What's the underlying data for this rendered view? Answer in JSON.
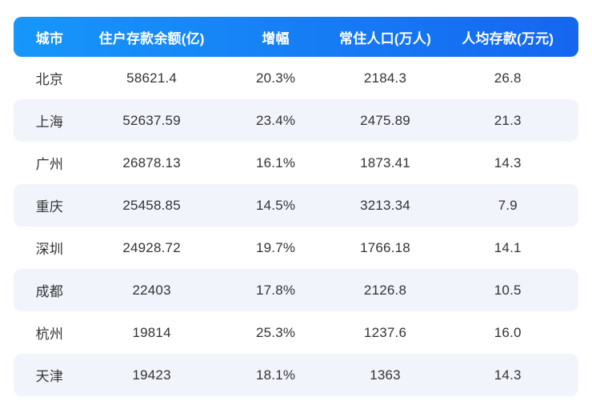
{
  "colors": {
    "header_gradient_start": "#1697FA",
    "header_gradient_end": "#1566F0",
    "header_text": "#FFFFFF",
    "stripe_row_background": "#F2F4FC",
    "body_text": "#333333",
    "page_background": "#FFFFFF"
  },
  "table": {
    "headers": {
      "city": "城市",
      "balance": "住户存款余额(亿)",
      "growth": "增幅",
      "population": "常住人口(万人)",
      "per_capita": "人均存款(万元)"
    },
    "rows": [
      {
        "city": "北京",
        "balance": "58621.4",
        "growth": "20.3%",
        "population": "2184.3",
        "per_capita": "26.8"
      },
      {
        "city": "上海",
        "balance": "52637.59",
        "growth": "23.4%",
        "population": "2475.89",
        "per_capita": "21.3"
      },
      {
        "city": "广州",
        "balance": "26878.13",
        "growth": "16.1%",
        "population": "1873.41",
        "per_capita": "14.3"
      },
      {
        "city": "重庆",
        "balance": "25458.85",
        "growth": "14.5%",
        "population": "3213.34",
        "per_capita": "7.9"
      },
      {
        "city": "深圳",
        "balance": "24928.72",
        "growth": "19.7%",
        "population": "1766.18",
        "per_capita": "14.1"
      },
      {
        "city": "成都",
        "balance": "22403",
        "growth": "17.8%",
        "population": "2126.8",
        "per_capita": "10.5"
      },
      {
        "city": "杭州",
        "balance": "19814",
        "growth": "25.3%",
        "population": "1237.6",
        "per_capita": "16.0"
      },
      {
        "city": "天津",
        "balance": "19423",
        "growth": "18.1%",
        "population": "1363",
        "per_capita": "14.3"
      }
    ]
  },
  "chart_data": {
    "type": "table",
    "columns": [
      "城市",
      "住户存款余额(亿)",
      "增幅",
      "常住人口(万人)",
      "人均存款(万元)"
    ],
    "rows": [
      [
        "北京",
        58621.4,
        "20.3%",
        2184.3,
        26.8
      ],
      [
        "上海",
        52637.59,
        "23.4%",
        2475.89,
        21.3
      ],
      [
        "广州",
        26878.13,
        "16.1%",
        1873.41,
        14.3
      ],
      [
        "重庆",
        25458.85,
        "14.5%",
        3213.34,
        7.9
      ],
      [
        "深圳",
        24928.72,
        "19.7%",
        1766.18,
        14.1
      ],
      [
        "成都",
        22403,
        "17.8%",
        2126.8,
        10.5
      ],
      [
        "杭州",
        19814,
        "25.3%",
        1237.6,
        16.0
      ],
      [
        "天津",
        19423,
        "18.1%",
        1363,
        14.3
      ]
    ],
    "layout": {
      "zebra_striping": true,
      "header_style": "blue-gradient-rounded",
      "grid_lines": false,
      "cell_alignment": "center"
    }
  }
}
